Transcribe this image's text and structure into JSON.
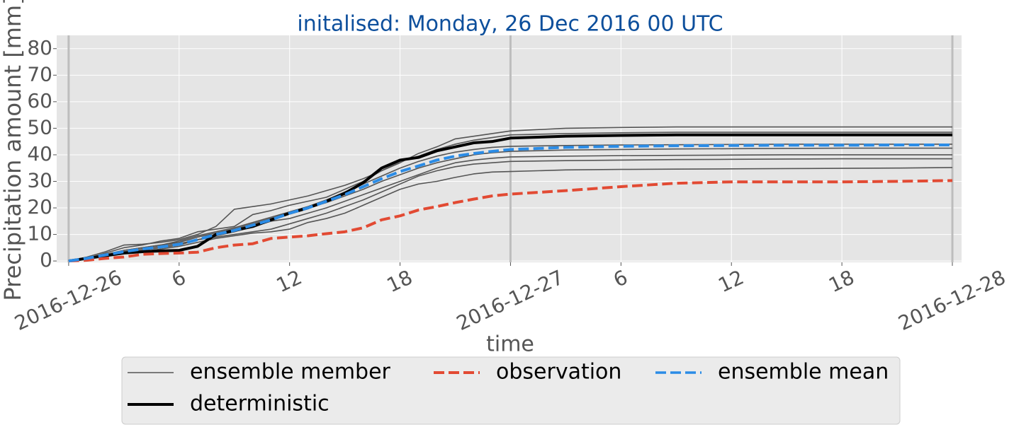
{
  "chart_data": {
    "type": "line",
    "title": "initalised: Monday, 26 Dec 2016 00 UTC",
    "x_label": "time",
    "y_label": "Precipitation amount [mm]",
    "x": [
      0,
      1,
      2,
      3,
      4,
      5,
      6,
      7,
      8,
      9,
      10,
      11,
      12,
      13,
      14,
      15,
      16,
      17,
      18,
      19,
      20,
      21,
      22,
      23,
      24,
      27,
      30,
      33,
      36,
      39,
      42,
      45,
      48
    ],
    "xlim": [
      -0.65,
      48.5
    ],
    "xticks": [
      {
        "value": 0,
        "label": "2016-12-26"
      },
      6,
      12,
      18,
      {
        "value": 24,
        "label": "2016-12-27"
      },
      {
        "value": 30,
        "label": "6"
      },
      {
        "value": 36,
        "label": "12"
      },
      {
        "value": 42,
        "label": "18"
      },
      {
        "value": 48,
        "label": "2016-12-28"
      }
    ],
    "ylim": [
      -0.5,
      85
    ],
    "yticks": [
      0,
      10,
      20,
      30,
      40,
      50,
      60,
      70,
      80
    ],
    "grid": true,
    "ensemble_members": {
      "name": "ensemble member",
      "color": "#555555",
      "values": [
        [
          0,
          1.5,
          3.5,
          6,
          6.3,
          7,
          8,
          10,
          13,
          19.5,
          20.5,
          21.5,
          23,
          24.5,
          26.5,
          28.5,
          31,
          34,
          37,
          40.5,
          43,
          46,
          47,
          48,
          49,
          50,
          50.3,
          50.5,
          50.5,
          50.5,
          50.5,
          50.5,
          50.5
        ],
        [
          0,
          1,
          3,
          5,
          6,
          7.5,
          8.5,
          11,
          12,
          13,
          17.5,
          19,
          21,
          22.5,
          24,
          27,
          30,
          34,
          37.5,
          39.5,
          42,
          44,
          45.5,
          46.5,
          47.5,
          48,
          48.3,
          48.5,
          48.5,
          48.5,
          48.5,
          48.5,
          48.5
        ],
        [
          0,
          1,
          2.5,
          4,
          5,
          6,
          7.5,
          9.5,
          11,
          12.5,
          14.5,
          16.5,
          18.5,
          20.5,
          23,
          26,
          29,
          32,
          35,
          37.5,
          39.5,
          41,
          42,
          42.8,
          43.2,
          43.5,
          43.7,
          43.8,
          43.9,
          44,
          44,
          44,
          44
        ],
        [
          0,
          1,
          2.5,
          4,
          5,
          6,
          7,
          9,
          10.5,
          12,
          14,
          16,
          18,
          20,
          22,
          24.5,
          27,
          30,
          32.5,
          35,
          37,
          38.5,
          40,
          40.8,
          41.3,
          41.8,
          42,
          42.2,
          42.3,
          42.4,
          42.5,
          42.5,
          42.5
        ],
        [
          0,
          1,
          2,
          3,
          4,
          5,
          6,
          8,
          9.5,
          11,
          13,
          15,
          16,
          18,
          20,
          22.5,
          25,
          27.5,
          30,
          32.5,
          35,
          37,
          38,
          38.7,
          39.2,
          39.5,
          39.7,
          39.8,
          39.9,
          40,
          40,
          40,
          40
        ],
        [
          0,
          1,
          2,
          3.5,
          4.5,
          5.5,
          6.5,
          8,
          9,
          10,
          11,
          12,
          14,
          16,
          18,
          20.5,
          23,
          26,
          29,
          32,
          34,
          35.5,
          36.5,
          37,
          37.5,
          37.8,
          38,
          38.2,
          38.3,
          38.4,
          38.5,
          38.5,
          38.5
        ],
        [
          0,
          0.8,
          2,
          3,
          3.5,
          4.5,
          5.5,
          7,
          8.5,
          9.5,
          10.5,
          11,
          12,
          14.5,
          16,
          18,
          21,
          24,
          27,
          29,
          30,
          31.5,
          32.8,
          33.5,
          33.7,
          34.3,
          34.5,
          34.6,
          34.7,
          34.8,
          34.9,
          35,
          35.2
        ]
      ]
    },
    "series": [
      {
        "name": "deterministic",
        "color": "#000000",
        "dashed": false,
        "values": [
          0,
          1,
          2,
          3,
          3.5,
          3.8,
          4,
          5.5,
          10,
          11.5,
          13,
          15.5,
          18,
          20,
          22.5,
          25.5,
          29.5,
          35,
          38,
          39,
          41.5,
          43,
          44.5,
          45,
          46.3,
          47,
          47.3,
          47.5,
          47.5,
          47.5,
          47.5,
          47.5,
          47.5
        ]
      },
      {
        "name": "observation",
        "color": "#e24a33",
        "dashed": true,
        "values": [
          0,
          0.3,
          1,
          1.5,
          2.5,
          2.8,
          3,
          3.3,
          5,
          6,
          6.5,
          8.5,
          9,
          9.5,
          10.3,
          11,
          12.5,
          15.5,
          17,
          19.2,
          20.5,
          22,
          23.3,
          24.5,
          25.2,
          26.5,
          28,
          29.3,
          29.8,
          29.8,
          29.8,
          30,
          30.3
        ]
      },
      {
        "name": "ensemble mean",
        "color": "#2b8ce6",
        "dashed": true,
        "values": [
          0,
          1,
          2.3,
          3.5,
          4.5,
          5.3,
          6.3,
          8,
          10,
          11.5,
          13.5,
          15.5,
          18,
          20,
          22.5,
          25,
          28,
          31,
          33.7,
          35.8,
          38,
          39.5,
          40.5,
          41.3,
          42,
          42.8,
          43.2,
          43.4,
          43.5,
          43.6,
          43.6,
          43.7,
          43.7
        ]
      }
    ]
  }
}
